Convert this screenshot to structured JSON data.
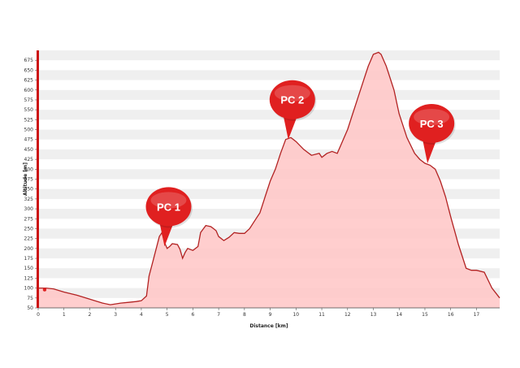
{
  "chart_data": {
    "type": "area",
    "title": "",
    "xlabel": "Distance [km]",
    "ylabel": "Altitude [m]",
    "xlim": [
      0,
      17.9
    ],
    "ylim": [
      50,
      700
    ],
    "xticks": [
      0,
      1,
      2,
      3,
      4,
      5,
      6,
      7,
      8,
      9,
      10,
      11,
      12,
      13,
      14,
      15,
      16,
      17
    ],
    "yticks": [
      50,
      75,
      100,
      125,
      150,
      175,
      200,
      225,
      250,
      275,
      300,
      325,
      350,
      375,
      400,
      425,
      450,
      475,
      500,
      525,
      550,
      575,
      600,
      625,
      650,
      675
    ],
    "grid": "alternating horizontal bands",
    "colors": {
      "line": "#b22222",
      "fill": "#ffc6c6",
      "marker": "#e02020",
      "band": "#efefef"
    },
    "series": [
      {
        "x": [
          0,
          0.3,
          0.6,
          1.0,
          1.5,
          2.0,
          2.5,
          2.8,
          3.0,
          3.2,
          3.5,
          3.8,
          4.0,
          4.2,
          4.3,
          4.5,
          4.7,
          4.8,
          4.9,
          5.0,
          5.1,
          5.2,
          5.4,
          5.5,
          5.6,
          5.7,
          5.8,
          6.0,
          6.2,
          6.3,
          6.5,
          6.7,
          6.9,
          7.0,
          7.2,
          7.4,
          7.6,
          7.8,
          8.0,
          8.2,
          8.4,
          8.6,
          8.8,
          9.0,
          9.2,
          9.4,
          9.6,
          9.8,
          10.0,
          10.3,
          10.6,
          10.9,
          11.0,
          11.2,
          11.4,
          11.6,
          11.8,
          12.0,
          12.2,
          12.5,
          12.8,
          13.0,
          13.2,
          13.3,
          13.5,
          13.8,
          14.0,
          14.3,
          14.6,
          14.8,
          15.0,
          15.2,
          15.4,
          15.6,
          15.8,
          16.0,
          16.3,
          16.6,
          16.8,
          17.0,
          17.3,
          17.6,
          17.9
        ],
        "y": [
          100,
          100,
          98,
          90,
          82,
          72,
          62,
          58,
          60,
          62,
          64,
          66,
          68,
          80,
          130,
          180,
          230,
          240,
          215,
          200,
          205,
          212,
          210,
          198,
          175,
          190,
          200,
          195,
          205,
          240,
          258,
          255,
          245,
          230,
          220,
          228,
          240,
          238,
          238,
          250,
          270,
          290,
          330,
          370,
          400,
          440,
          475,
          480,
          470,
          450,
          435,
          440,
          430,
          440,
          445,
          440,
          470,
          500,
          540,
          600,
          660,
          690,
          695,
          690,
          660,
          600,
          540,
          480,
          440,
          425,
          415,
          410,
          400,
          370,
          330,
          280,
          210,
          150,
          145,
          145,
          140,
          100,
          75
        ]
      }
    ],
    "annotations": [
      {
        "label": "PC 1",
        "x": 4.9,
        "y": 205
      },
      {
        "label": "PC 2",
        "x": 9.7,
        "y": 475
      },
      {
        "label": "PC 3",
        "x": 15.1,
        "y": 415
      }
    ]
  }
}
